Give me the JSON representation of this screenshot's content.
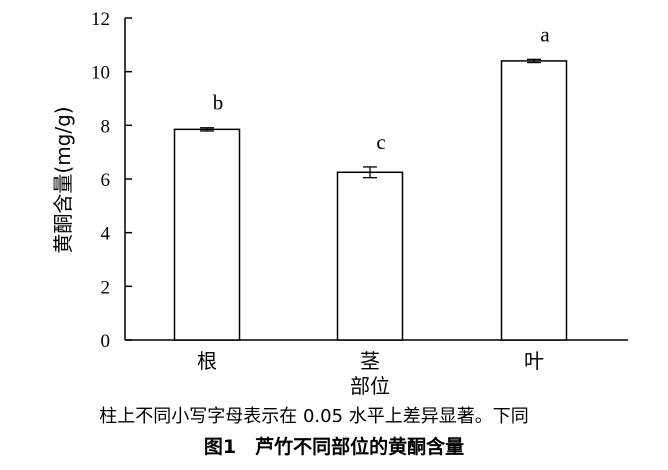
{
  "chart_data": {
    "type": "bar",
    "categories": [
      "根",
      "茎",
      "叶"
    ],
    "values": [
      7.85,
      6.25,
      10.4
    ],
    "errors": [
      0.06,
      0.2,
      0.06
    ],
    "significance": [
      "b",
      "c",
      "a"
    ],
    "xlabel": "部位",
    "ylabel": "黄酮含量(mg/g)",
    "ylim": [
      0,
      12
    ],
    "yticks": [
      0,
      2,
      4,
      6,
      8,
      10,
      12
    ],
    "grid": false,
    "legend": "none"
  },
  "note": "柱上不同小写字母表示在 0.05 水平上差异显著。下同",
  "caption": "图1　芦竹不同部位的黄酮含量"
}
